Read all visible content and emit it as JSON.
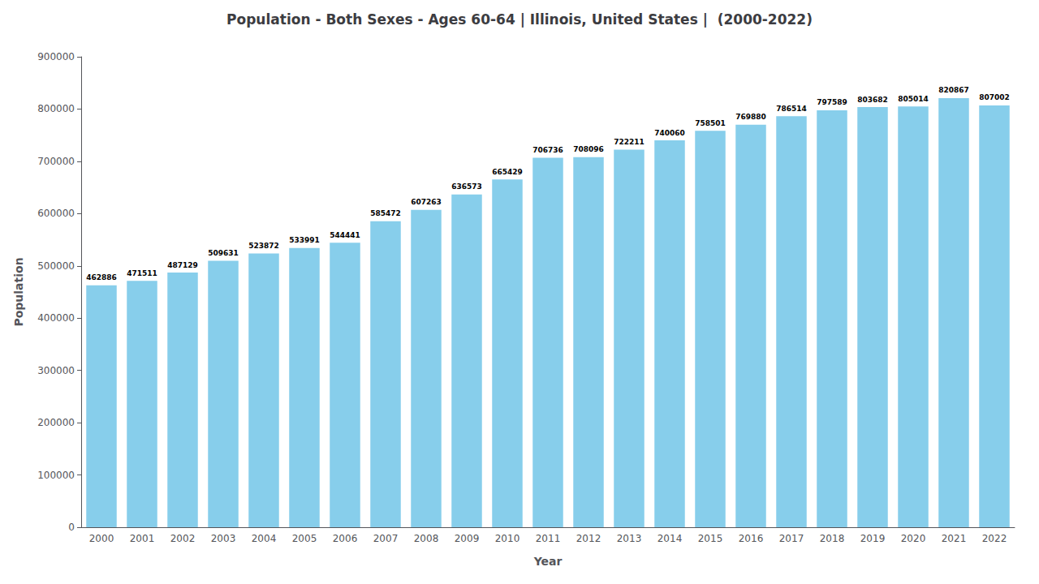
{
  "chart_data": {
    "type": "bar",
    "title": "Population - Both Sexes - Ages 60-64 | Illinois, United States |  (2000-2022)",
    "xlabel": "Year",
    "ylabel": "Population",
    "categories": [
      "2000",
      "2001",
      "2002",
      "2003",
      "2004",
      "2005",
      "2006",
      "2007",
      "2008",
      "2009",
      "2010",
      "2011",
      "2012",
      "2013",
      "2014",
      "2015",
      "2016",
      "2017",
      "2018",
      "2019",
      "2020",
      "2021",
      "2022"
    ],
    "values": [
      462886,
      471511,
      487129,
      509631,
      523872,
      533991,
      544441,
      585472,
      607263,
      636573,
      665429,
      706736,
      708096,
      722211,
      740060,
      758501,
      769880,
      786514,
      797589,
      803682,
      805014,
      820867,
      807002
    ],
    "color": "#87CEEB",
    "ylim": [
      0,
      900000
    ],
    "yticks": [
      0,
      100000,
      200000,
      300000,
      400000,
      500000,
      600000,
      700000,
      800000,
      900000
    ],
    "grid": false,
    "data_labels": true
  }
}
